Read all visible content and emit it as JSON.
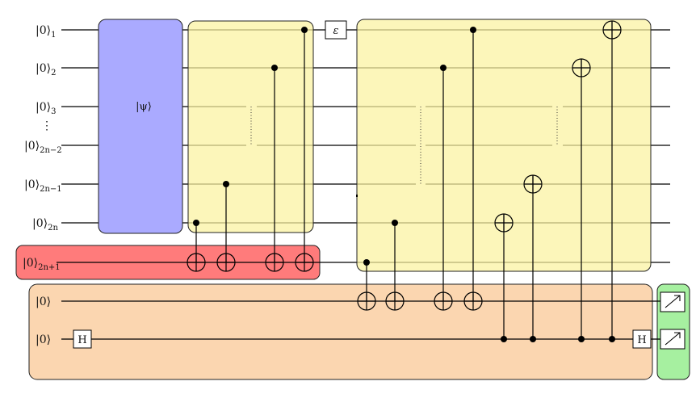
{
  "qubit_labels": {
    "q1": {
      "base": "|0⟩",
      "sub": "1"
    },
    "q2": {
      "base": "|0⟩",
      "sub": "2"
    },
    "q3": {
      "base": "|0⟩",
      "sub": "3"
    },
    "q2n2": {
      "base": "|0⟩",
      "sub": "2n−2"
    },
    "q2n1": {
      "base": "|0⟩",
      "sub": "2n−1"
    },
    "q2n": {
      "base": "|0⟩",
      "sub": "2n"
    },
    "q2n_plus1": {
      "base": "|0⟩",
      "sub": "2n+1"
    },
    "anc1": {
      "base": "|0⟩"
    },
    "anc2": {
      "base": "|0⟩"
    }
  },
  "vdots": "⋮",
  "state_prep_label": "|ψ⟩",
  "epsilon_gate": "ε",
  "hadamard_left": "H",
  "hadamard_right": "H",
  "colors": {
    "state_prep": "#aaaaff",
    "oracle_blocks": "#fbf6b8",
    "ancilla_register": "#ff7b7b",
    "swap_test_register": "#fbd6b0",
    "measurement": "#a6f0a0"
  }
}
